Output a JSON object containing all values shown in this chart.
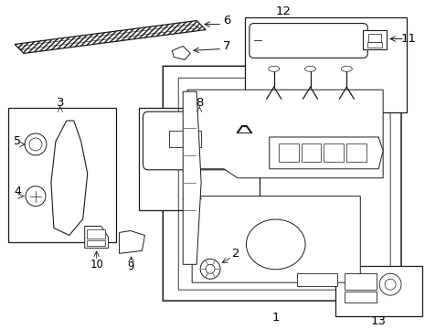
{
  "bg_color": "#ffffff",
  "line_color": "#1a1a1a",
  "label_color": "#000000",
  "fs": 8.5
}
